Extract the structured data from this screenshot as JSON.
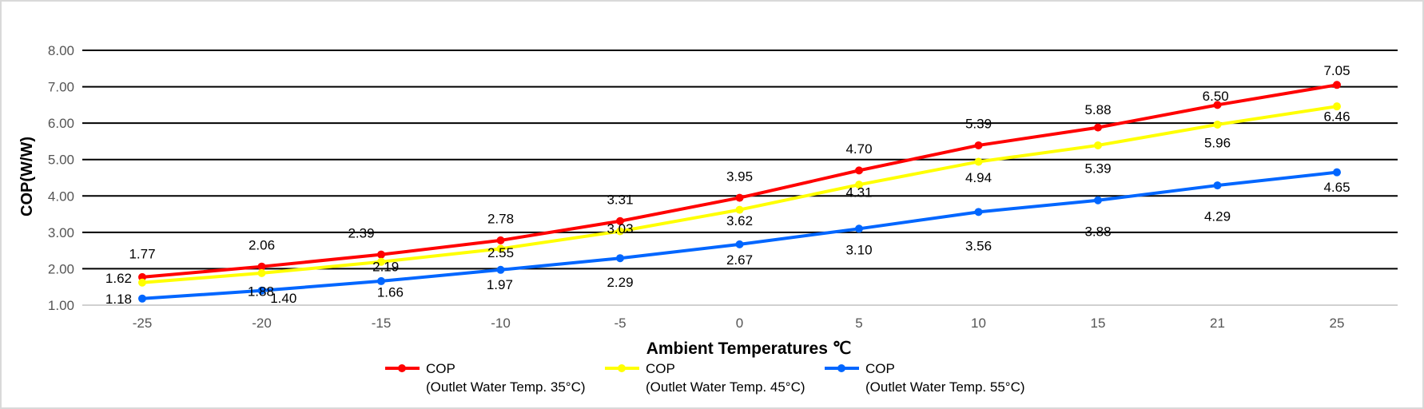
{
  "chart_data": {
    "type": "line",
    "title": "",
    "xlabel": "Ambient Temperatures ℃",
    "ylabel": "COP(W/W)",
    "ylim": [
      1,
      8
    ],
    "yticks": [
      "1.00",
      "2.00",
      "3.00",
      "4.00",
      "5.00",
      "6.00",
      "7.00",
      "8.00"
    ],
    "categories": [
      "-25",
      "-20",
      "-15",
      "-10",
      "-5",
      "0",
      "5",
      "10",
      "15",
      "21",
      "25"
    ],
    "grid": true,
    "legend_position": "bottom",
    "series": [
      {
        "name": "COP",
        "subname": "(Outlet Water Temp. 35°C)",
        "color": "#ff0000",
        "values": [
          1.77,
          2.06,
          2.39,
          2.78,
          3.31,
          3.95,
          4.7,
          5.39,
          5.88,
          6.5,
          7.05
        ]
      },
      {
        "name": "COP",
        "subname": "(Outlet Water Temp. 45°C)",
        "color": "#ffff00",
        "values": [
          1.62,
          1.88,
          2.19,
          2.55,
          3.03,
          3.62,
          4.31,
          4.94,
          5.39,
          5.96,
          6.46
        ]
      },
      {
        "name": "COP",
        "subname": "(Outlet Water Temp. 55°C)",
        "color": "#0066ff",
        "values": [
          1.18,
          1.4,
          1.66,
          1.97,
          2.29,
          2.67,
          3.1,
          3.56,
          3.88,
          4.29,
          4.65
        ]
      }
    ]
  }
}
